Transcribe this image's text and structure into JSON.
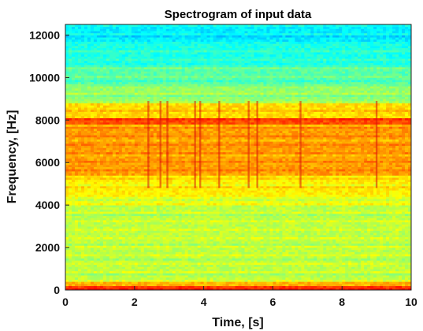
{
  "chart_data": {
    "type": "heatmap",
    "title": "Spectrogram of input data",
    "xlabel": "Time, [s]",
    "ylabel": "Frequency, [Hz]",
    "xlim": [
      0,
      10
    ],
    "ylim": [
      0,
      12500
    ],
    "x_ticks": [
      0,
      2,
      4,
      6,
      8,
      10
    ],
    "y_ticks": [
      0,
      2000,
      4000,
      6000,
      8000,
      10000,
      12000
    ],
    "colormap": "jet",
    "grid": false,
    "description_bands": [
      {
        "freq_from": 0,
        "freq_to": 200,
        "intensity": 0.82
      },
      {
        "freq_from": 200,
        "freq_to": 450,
        "intensity": 0.7
      },
      {
        "freq_from": 450,
        "freq_to": 4000,
        "intensity": 0.56
      },
      {
        "freq_from": 4000,
        "freq_to": 4500,
        "intensity": 0.6
      },
      {
        "freq_from": 4500,
        "freq_to": 5400,
        "intensity": 0.64
      },
      {
        "freq_from": 5400,
        "freq_to": 7800,
        "intensity": 0.72
      },
      {
        "freq_from": 7800,
        "freq_to": 8100,
        "intensity": 0.8
      },
      {
        "freq_from": 8100,
        "freq_to": 8800,
        "intensity": 0.66
      },
      {
        "freq_from": 8800,
        "freq_to": 9600,
        "intensity": 0.52
      },
      {
        "freq_from": 9600,
        "freq_to": 10600,
        "intensity": 0.46
      },
      {
        "freq_from": 10600,
        "freq_to": 11600,
        "intensity": 0.4
      },
      {
        "freq_from": 11600,
        "freq_to": 12500,
        "intensity": 0.36
      }
    ],
    "vertical_events_s": [
      2.4,
      2.75,
      2.95,
      3.75,
      3.9,
      4.45,
      5.3,
      5.55,
      6.8,
      9.0
    ]
  }
}
